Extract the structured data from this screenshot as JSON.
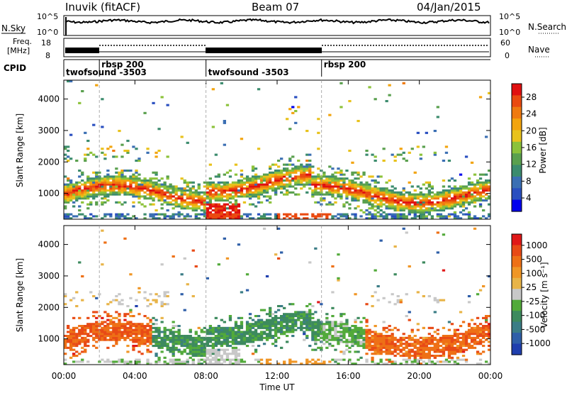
{
  "header": {
    "station": "Inuvik (fitACF)",
    "beam": "Beam 07",
    "date": "04/Jan/2015"
  },
  "panels": {
    "nsky": {
      "left_label": "N.Sky",
      "right_label": "N.Search",
      "left_ticks": [
        "10^5",
        "10^0"
      ],
      "right_ticks": [
        "10^5",
        "10^0"
      ]
    },
    "freq": {
      "left_label_line1": "Freq.",
      "left_label_line2": "[MHz]",
      "left_ticks": [
        "18",
        "8"
      ],
      "right_label": "Nave",
      "right_ticks": [
        "60",
        "0"
      ]
    },
    "cpid": {
      "label": "CPID",
      "segments": [
        {
          "label": "twofsound -3503",
          "start": 0.0
        },
        {
          "label": "rbsp 200",
          "start": 2.0
        },
        {
          "label": "twofsound -3503",
          "start": 8.0
        },
        {
          "label": "rbsp 200",
          "start": 14.5
        }
      ]
    }
  },
  "chart_data": [
    {
      "type": "heatmap",
      "name": "power",
      "ylabel": "Slant Range [km]",
      "ylim": [
        180,
        4600
      ],
      "yticks": [
        1000,
        2000,
        3000,
        4000
      ],
      "colorbar": {
        "label": "Power [dB]",
        "ticks": [
          "28",
          "24",
          "20",
          "16",
          "12",
          "8",
          "4"
        ],
        "colors": [
          "#0000ee",
          "#2a4fc0",
          "#3b6fb3",
          "#3c8c6e",
          "#5aa04e",
          "#8cc23a",
          "#e8c21c",
          "#f2a40e",
          "#ef7a10",
          "#ea4a10",
          "#e01010"
        ]
      }
    },
    {
      "type": "heatmap",
      "name": "velocity",
      "ylabel": "Slant Range [km]",
      "ylim": [
        180,
        4600
      ],
      "yticks": [
        1000,
        2000,
        3000,
        4000
      ],
      "xlabel": "Time UT",
      "xticks": [
        "00:00",
        "04:00",
        "08:00",
        "12:00",
        "16:00",
        "20:00",
        "00:00"
      ],
      "xlim_hours": [
        0,
        24
      ],
      "colorbar": {
        "label": "Velocity [m s^-1]",
        "ticks": [
          "1000",
          "500",
          "100",
          "25",
          "-25",
          "-100",
          "-500",
          "-1000"
        ],
        "colors": [
          "#1f3fae",
          "#2f5fa8",
          "#3b7d86",
          "#3d8a5e",
          "#52aa3a",
          "#c8c8c8",
          "#e8b448",
          "#f09626",
          "#ee7016",
          "#e84a16",
          "#e01818"
        ]
      }
    }
  ]
}
